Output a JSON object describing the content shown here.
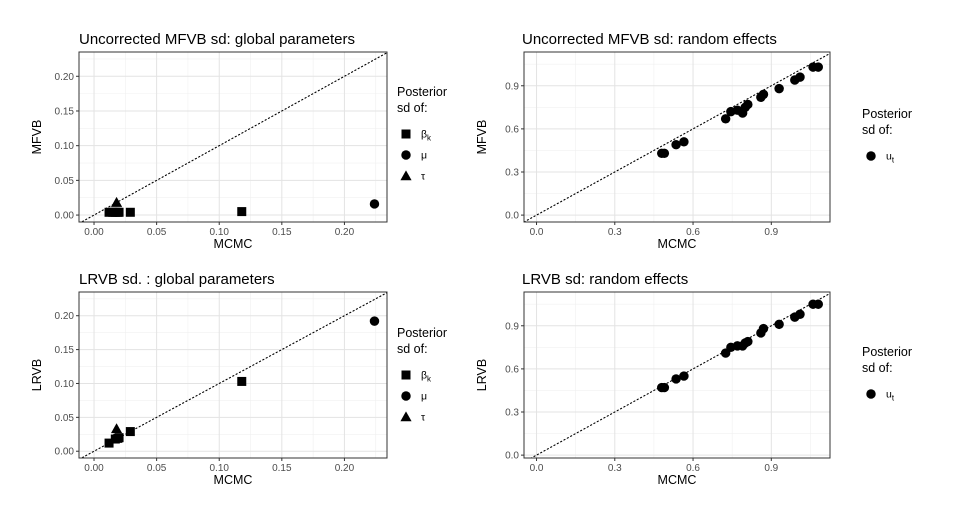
{
  "chart_data": [
    {
      "type": "scatter",
      "title": "Uncorrected MFVB sd: global parameters",
      "xlabel": "MCMC",
      "ylabel": "MFVB",
      "xlim": [
        -0.012,
        0.234
      ],
      "ylim": [
        -0.01,
        0.235
      ],
      "xticks": [
        0.0,
        0.05,
        0.1,
        0.15,
        0.2
      ],
      "xtick_labels": [
        "0.00",
        "0.05",
        "0.10",
        "0.15",
        "0.20"
      ],
      "yticks": [
        0.0,
        0.05,
        0.1,
        0.15,
        0.2
      ],
      "ytick_labels": [
        "0.00",
        "0.05",
        "0.10",
        "0.15",
        "0.20"
      ],
      "grid": true,
      "reference_line": "y = x (dotted)",
      "legend": {
        "title": [
          "Posterior",
          "sd of:"
        ],
        "placement": "right",
        "entries": [
          {
            "shape": "square",
            "label": "β",
            "sub": "k"
          },
          {
            "shape": "circle",
            "label": "μ",
            "sub": ""
          },
          {
            "shape": "triangle",
            "label": "τ",
            "sub": ""
          }
        ]
      },
      "series": [
        {
          "shape": "square",
          "points": [
            [
              0.012,
              0.004
            ],
            [
              0.015,
              0.004
            ],
            [
              0.017,
              0.004
            ],
            [
              0.019,
              0.004
            ],
            [
              0.02,
              0.004
            ],
            [
              0.029,
              0.004
            ],
            [
              0.118,
              0.005
            ]
          ]
        },
        {
          "shape": "circle",
          "points": [
            [
              0.224,
              0.016
            ]
          ]
        },
        {
          "shape": "triangle",
          "points": [
            [
              0.018,
              0.018
            ]
          ]
        }
      ]
    },
    {
      "type": "scatter",
      "title": "Uncorrected MFVB sd: random effects",
      "xlabel": "MCMC",
      "ylabel": "MFVB",
      "xlim": [
        -0.048,
        1.125
      ],
      "ylim": [
        -0.048,
        1.135
      ],
      "xticks": [
        0.0,
        0.3,
        0.6,
        0.9
      ],
      "xtick_labels": [
        "0.0",
        "0.3",
        "0.6",
        "0.9"
      ],
      "yticks": [
        0.0,
        0.3,
        0.6,
        0.9
      ],
      "ytick_labels": [
        "0.0",
        "0.3",
        "0.6",
        "0.9"
      ],
      "grid": true,
      "reference_line": "y = x (dotted)",
      "legend": {
        "title": [
          "Posterior",
          "sd of:"
        ],
        "placement": "right",
        "entries": [
          {
            "shape": "circle",
            "label": "u",
            "sub": "t"
          }
        ]
      },
      "series": [
        {
          "shape": "circle",
          "points": [
            [
              0.48,
              0.43
            ],
            [
              0.49,
              0.43
            ],
            [
              0.535,
              0.49
            ],
            [
              0.565,
              0.51
            ],
            [
              0.725,
              0.67
            ],
            [
              0.745,
              0.72
            ],
            [
              0.77,
              0.73
            ],
            [
              0.79,
              0.71
            ],
            [
              0.8,
              0.75
            ],
            [
              0.81,
              0.77
            ],
            [
              0.86,
              0.82
            ],
            [
              0.87,
              0.84
            ],
            [
              0.93,
              0.88
            ],
            [
              0.99,
              0.94
            ],
            [
              1.01,
              0.96
            ],
            [
              1.06,
              1.03
            ],
            [
              1.08,
              1.03
            ]
          ]
        }
      ]
    },
    {
      "type": "scatter",
      "title": "LRVB sd. : global parameters",
      "xlabel": "MCMC",
      "ylabel": "LRVB",
      "xlim": [
        -0.012,
        0.234
      ],
      "ylim": [
        -0.01,
        0.235
      ],
      "xticks": [
        0.0,
        0.05,
        0.1,
        0.15,
        0.2
      ],
      "xtick_labels": [
        "0.00",
        "0.05",
        "0.10",
        "0.15",
        "0.20"
      ],
      "yticks": [
        0.0,
        0.05,
        0.1,
        0.15,
        0.2
      ],
      "ytick_labels": [
        "0.00",
        "0.05",
        "0.10",
        "0.15",
        "0.20"
      ],
      "grid": true,
      "reference_line": "y = x (dotted)",
      "legend": {
        "title": [
          "Posterior",
          "sd of:"
        ],
        "placement": "right",
        "entries": [
          {
            "shape": "square",
            "label": "β",
            "sub": "k"
          },
          {
            "shape": "circle",
            "label": "μ",
            "sub": ""
          },
          {
            "shape": "triangle",
            "label": "τ",
            "sub": ""
          }
        ]
      },
      "series": [
        {
          "shape": "square",
          "points": [
            [
              0.012,
              0.012
            ],
            [
              0.017,
              0.018
            ],
            [
              0.019,
              0.019
            ],
            [
              0.02,
              0.02
            ],
            [
              0.029,
              0.029
            ],
            [
              0.118,
              0.103
            ]
          ]
        },
        {
          "shape": "circle",
          "points": [
            [
              0.224,
              0.192
            ]
          ]
        },
        {
          "shape": "triangle",
          "points": [
            [
              0.018,
              0.033
            ]
          ]
        }
      ]
    },
    {
      "type": "scatter",
      "title": "LRVB sd: random effects",
      "xlabel": "MCMC",
      "ylabel": "LRVB",
      "xlim": [
        -0.048,
        1.125
      ],
      "ylim": [
        -0.02,
        1.135
      ],
      "xticks": [
        0.0,
        0.3,
        0.6,
        0.9
      ],
      "xtick_labels": [
        "0.0",
        "0.3",
        "0.6",
        "0.9"
      ],
      "yticks": [
        0.0,
        0.3,
        0.6,
        0.9
      ],
      "ytick_labels": [
        "0.0",
        "0.3",
        "0.6",
        "0.9"
      ],
      "grid": true,
      "reference_line": "y = x (dotted)",
      "legend": {
        "title": [
          "Posterior",
          "sd of:"
        ],
        "placement": "right",
        "entries": [
          {
            "shape": "circle",
            "label": "u",
            "sub": "t"
          }
        ]
      },
      "series": [
        {
          "shape": "circle",
          "points": [
            [
              0.48,
              0.47
            ],
            [
              0.49,
              0.47
            ],
            [
              0.535,
              0.53
            ],
            [
              0.565,
              0.55
            ],
            [
              0.725,
              0.71
            ],
            [
              0.745,
              0.75
            ],
            [
              0.77,
              0.76
            ],
            [
              0.79,
              0.76
            ],
            [
              0.8,
              0.78
            ],
            [
              0.81,
              0.79
            ],
            [
              0.86,
              0.85
            ],
            [
              0.87,
              0.88
            ],
            [
              0.93,
              0.91
            ],
            [
              0.99,
              0.96
            ],
            [
              1.01,
              0.98
            ],
            [
              1.06,
              1.05
            ],
            [
              1.08,
              1.05
            ]
          ]
        }
      ]
    }
  ]
}
